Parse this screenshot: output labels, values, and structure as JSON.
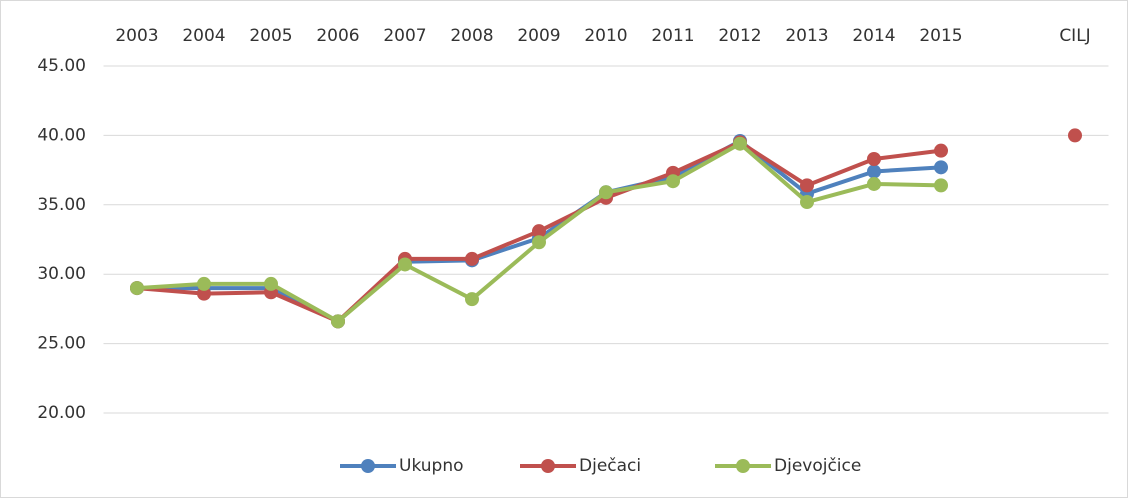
{
  "chart_data": {
    "type": "line",
    "categories": [
      "2003",
      "2004",
      "2005",
      "2006",
      "2007",
      "2008",
      "2009",
      "2010",
      "2011",
      "2012",
      "2013",
      "2014",
      "2015",
      null,
      "CILJ"
    ],
    "series": [
      {
        "name": "Ukupno",
        "color": "#4f81bd",
        "values": [
          29.0,
          29.0,
          29.0,
          26.6,
          30.9,
          31.0,
          32.6,
          35.9,
          37.0,
          39.6,
          35.8,
          37.4,
          37.7,
          null,
          null
        ]
      },
      {
        "name": "Dječaci",
        "color": "#c0504d",
        "values": [
          29.0,
          28.6,
          28.7,
          26.6,
          31.1,
          31.1,
          33.1,
          35.5,
          37.3,
          39.5,
          36.4,
          38.3,
          38.9,
          null,
          40.0
        ]
      },
      {
        "name": "Djevojčice",
        "color": "#9bbb59",
        "values": [
          29.0,
          29.3,
          29.3,
          26.6,
          30.7,
          28.2,
          32.3,
          35.9,
          36.7,
          39.4,
          35.2,
          36.5,
          36.4,
          null,
          null
        ]
      }
    ],
    "ylim": [
      20,
      45
    ],
    "yticks": [
      {
        "value": 20,
        "label": "20.00"
      },
      {
        "value": 25,
        "label": "25.00"
      },
      {
        "value": 30,
        "label": "30.00"
      },
      {
        "value": 35,
        "label": "35.00"
      },
      {
        "value": 40,
        "label": "40.00"
      },
      {
        "value": 45,
        "label": "45.00"
      }
    ],
    "grid": true,
    "legend": "bottom"
  }
}
